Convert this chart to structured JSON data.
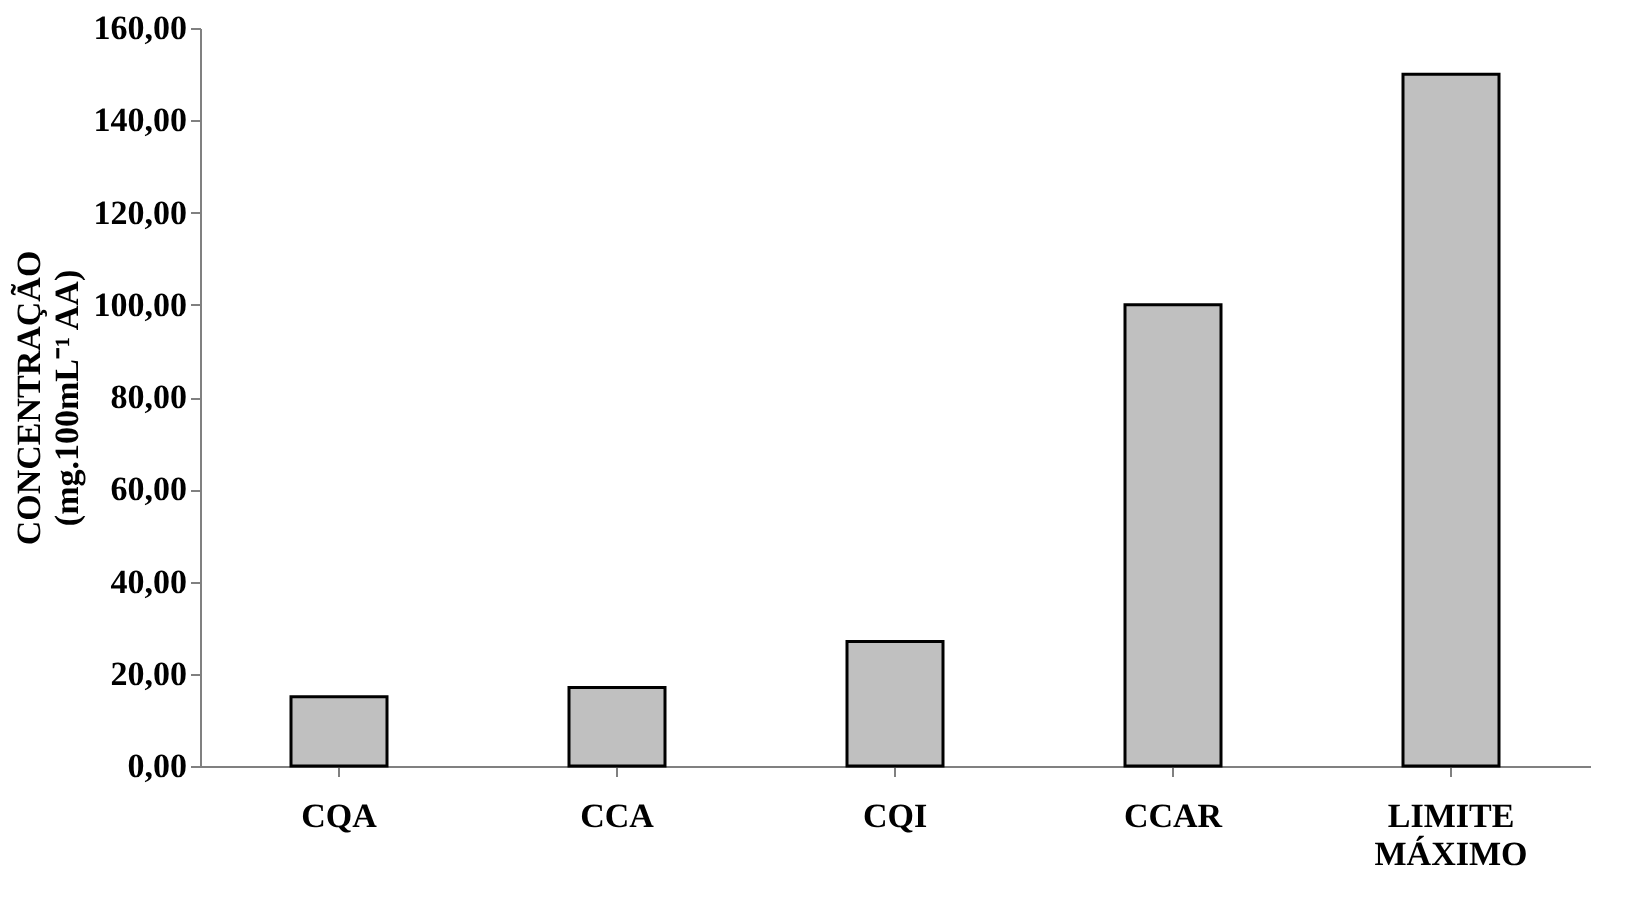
{
  "chart_data": {
    "type": "bar",
    "ylabel": "CONCENTRAÇÃO\n(mg.100mL⁻¹ AA)",
    "categories": [
      "CQA",
      "CCA",
      "CQI",
      "CCAR",
      "LIMITE MÁXIMO"
    ],
    "values": [
      15,
      17,
      27,
      100,
      150
    ],
    "color": "#c0c0c0",
    "ylim": [
      0,
      160
    ],
    "yticks": [
      {
        "value": 0,
        "label": "0,00"
      },
      {
        "value": 20,
        "label": "20,00"
      },
      {
        "value": 40,
        "label": "40,00"
      },
      {
        "value": 60,
        "label": "60,00"
      },
      {
        "value": 80,
        "label": "80,00"
      },
      {
        "value": 100,
        "label": "100,00"
      },
      {
        "value": 120,
        "label": "120,00"
      },
      {
        "value": 140,
        "label": "140,00"
      },
      {
        "value": 160,
        "label": "160,00"
      }
    ],
    "grid": false
  }
}
